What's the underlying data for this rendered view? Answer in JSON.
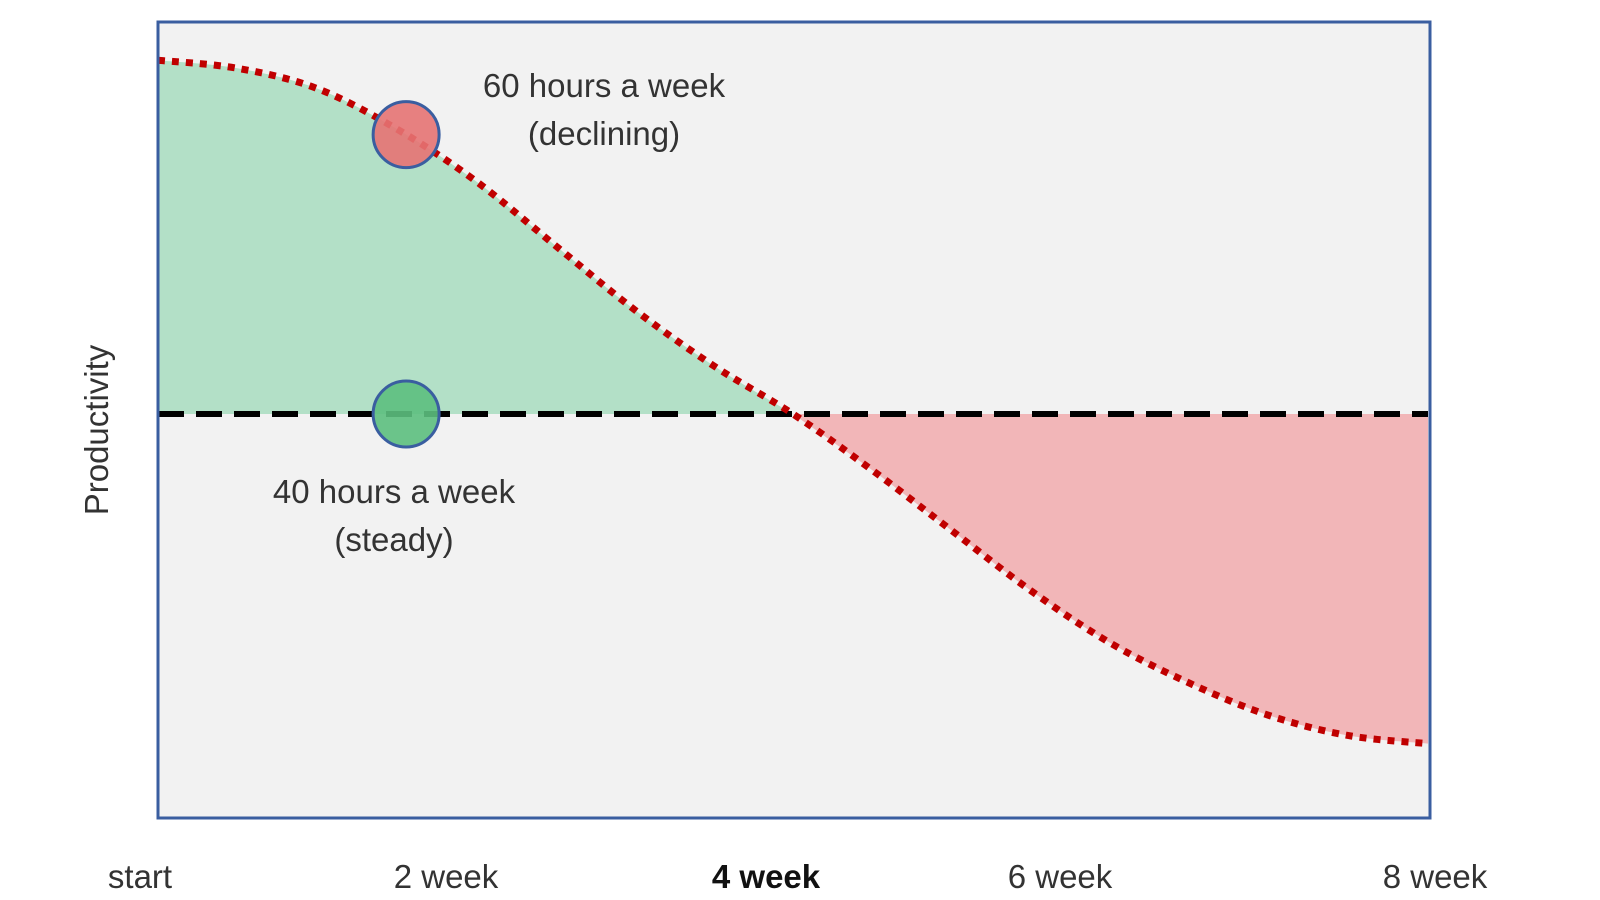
{
  "chart_data": {
    "type": "line",
    "title": "",
    "xlabel": "",
    "ylabel": "Productivity",
    "x_ticks": [
      {
        "label": "start",
        "week": 0,
        "bold": false
      },
      {
        "label": "2 week",
        "week": 2,
        "bold": false
      },
      {
        "label": "4 week",
        "week": 4,
        "bold": true
      },
      {
        "label": "6 week",
        "week": 6,
        "bold": false
      },
      {
        "label": "8 week",
        "week": 8,
        "bold": false
      }
    ],
    "xlim": [
      0,
      8
    ],
    "ylim": [
      -1,
      1
    ],
    "series": [
      {
        "x": [
          0,
          0.5,
          1,
          1.5,
          2,
          2.5,
          3,
          3.5,
          4,
          4.5,
          5,
          5.5,
          6,
          6.5,
          7,
          7.5,
          8
        ],
        "y": [
          0.88,
          0.86,
          0.81,
          0.71,
          0.58,
          0.42,
          0.26,
          0.12,
          0.0,
          -0.14,
          -0.29,
          -0.44,
          -0.57,
          -0.67,
          -0.75,
          -0.8,
          -0.82
        ],
        "style": "dotted",
        "color": "#c00000"
      },
      {
        "x": [
          0,
          8
        ],
        "y": [
          0,
          0
        ],
        "style": "dashed",
        "color": "#000000"
      }
    ],
    "fills": [
      {
        "between": "above-baseline",
        "x_range": [
          0,
          4
        ],
        "color": "#b3e0c7"
      },
      {
        "between": "below-baseline",
        "x_range": [
          4,
          8
        ],
        "color": "#f2b6b8"
      }
    ],
    "markers": [
      {
        "x": 1.5,
        "y": 0.71,
        "color": "#e57373"
      },
      {
        "x": 1.5,
        "y": 0.0,
        "color": "#5cbf7e"
      }
    ],
    "annotations": [
      {
        "lines": [
          "60 hours a week",
          "(declining)"
        ]
      },
      {
        "lines": [
          "40 hours a week",
          "(steady)"
        ]
      }
    ],
    "grid": false,
    "legend": "none",
    "colors": {
      "plot_background": "#f2f2f2",
      "frame": "#3a5ea0"
    }
  }
}
